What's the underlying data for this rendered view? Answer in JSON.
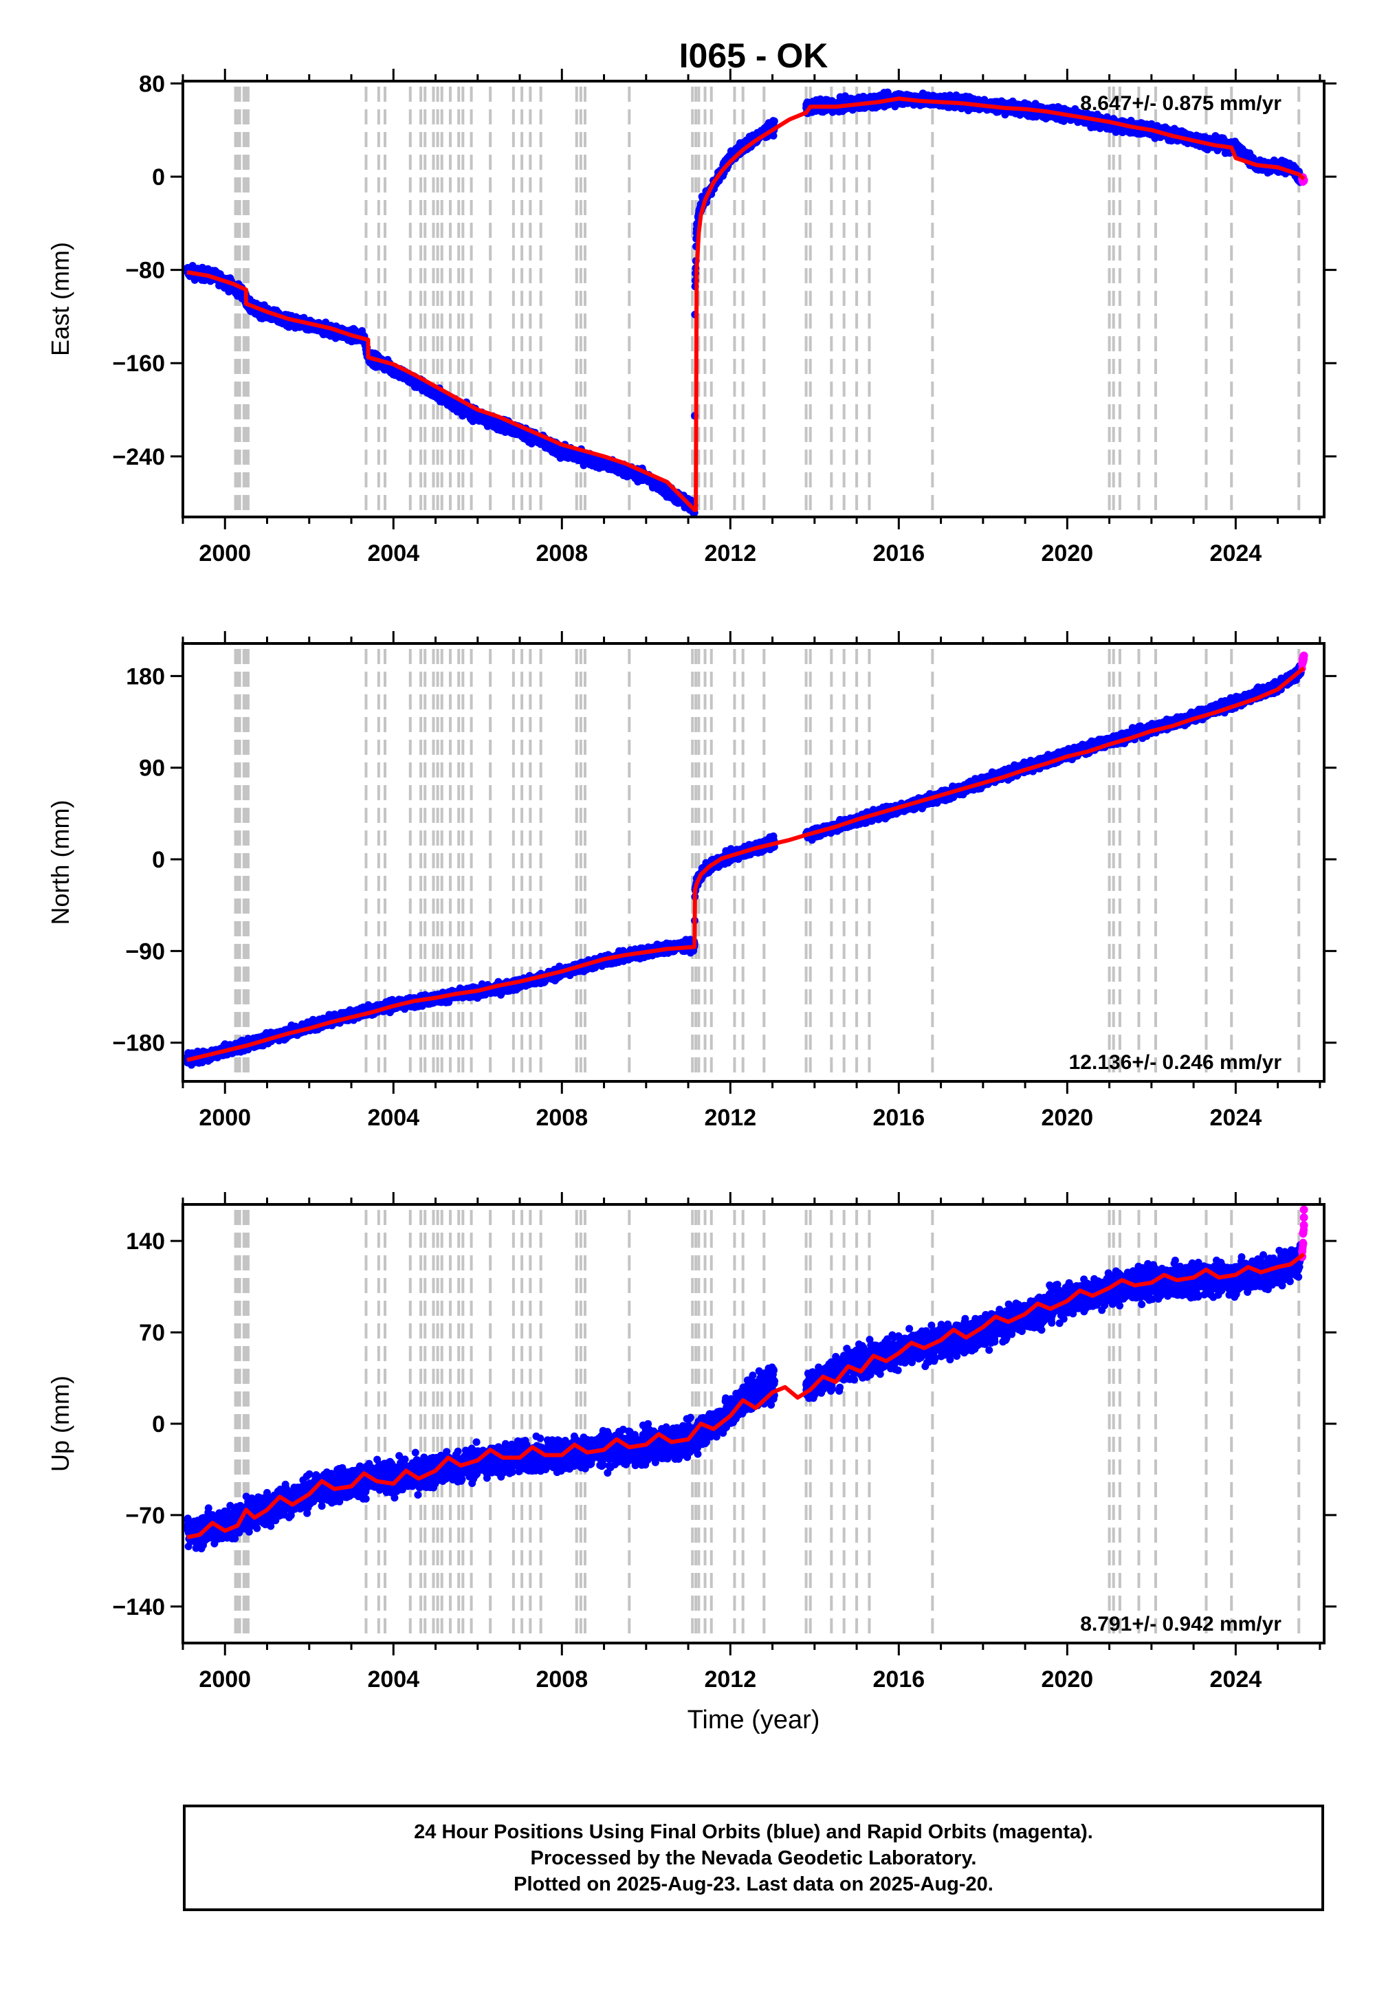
{
  "chart_data": {
    "type": "scatter",
    "title": "I065 - OK",
    "xlabel": "Time (year)",
    "xlim": [
      1999.0,
      2026.1
    ],
    "xticks": [
      2000,
      2004,
      2008,
      2012,
      2016,
      2020,
      2024
    ],
    "equipment_change_epochs": [
      2000.25,
      2000.3,
      2000.35,
      2000.45,
      2000.5,
      2000.55,
      2003.35,
      2003.65,
      2003.8,
      2004.4,
      2004.65,
      2004.75,
      2004.95,
      2005.05,
      2005.15,
      2005.35,
      2005.55,
      2005.65,
      2005.85,
      2006.3,
      2006.85,
      2007.05,
      2007.25,
      2007.5,
      2008.35,
      2008.45,
      2008.55,
      2009.6,
      2011.1,
      2011.18,
      2011.25,
      2011.4,
      2011.55,
      2012.1,
      2012.3,
      2012.8,
      2013.8,
      2013.9,
      2014.4,
      2014.7,
      2015.0,
      2015.3,
      2016.8,
      2021.0,
      2021.1,
      2021.25,
      2021.7,
      2022.1,
      2023.3,
      2023.9,
      2025.5
    ],
    "panels": [
      {
        "ylabel": "East (mm)",
        "ylim": [
          -292,
          82
        ],
        "yticks": [
          80,
          0,
          -80,
          -160,
          -240
        ],
        "rate_label": "8.647+/- 0.875 mm/yr",
        "rate_position": "top-right",
        "series": [
          {
            "name": "Final Orbits",
            "color": "#0000ff",
            "noise": 3.5,
            "x": [
              1999.1,
              1999.8,
              2000.4,
              2000.6,
              2001.5,
              2002.5,
              2003.3,
              2003.4,
              2004.0,
              2005.0,
              2006.0,
              2007.0,
              2008.0,
              2009.0,
              2010.0,
              2011.15,
              2011.16,
              2011.2,
              2011.3,
              2011.6,
              2012.0,
              2012.5,
              2013.0,
              2013.5,
              2013.8,
              2014.5,
              2015.0,
              2016.0,
              2017.0,
              2018.0,
              2019.0,
              2020.0,
              2021.0,
              2022.0,
              2023.0,
              2024.0,
              2024.5,
              2025.3,
              2025.55
            ],
            "y": [
              -81,
              -86,
              -99,
              -112,
              -124,
              -132,
              -138,
              -154,
              -165,
              -186,
              -206,
              -218,
              -236,
              -246,
              -258,
              -285,
              -100,
              -42,
              -25,
              -8,
              17,
              31,
              42,
              52,
              60,
              61,
              63,
              67,
              65,
              62,
              58,
              53,
              45,
              40,
              32,
              25,
              10,
              8,
              -2
            ]
          },
          {
            "name": "Rapid Orbits",
            "color": "#ff00ff",
            "noise": 2.0,
            "x": [
              2025.58,
              2025.62
            ],
            "y": [
              -2,
              -3
            ]
          }
        ],
        "fit": {
          "color": "#ff0000",
          "x": [
            1999.1,
            1999.6,
            2000.2,
            2000.5,
            2000.5,
            2001.0,
            2001.5,
            2002.0,
            2002.5,
            2003.0,
            2003.4,
            2003.4,
            2004.0,
            2004.5,
            2005.0,
            2005.5,
            2006.0,
            2006.5,
            2007.0,
            2007.5,
            2008.0,
            2008.5,
            2009.0,
            2009.5,
            2010.0,
            2010.5,
            2011.15,
            2011.18,
            2011.2,
            2011.25,
            2011.3,
            2011.4,
            2011.6,
            2011.8,
            2012.0,
            2012.3,
            2012.6,
            2013.0,
            2013.4,
            2013.8,
            2013.9,
            2014.5,
            2015.0,
            2015.5,
            2016.0,
            2016.5,
            2017.0,
            2017.5,
            2018.0,
            2018.5,
            2019.0,
            2019.5,
            2020.0,
            2020.5,
            2021.0,
            2021.5,
            2022.0,
            2022.5,
            2023.0,
            2023.5,
            2023.9,
            2024.0,
            2024.5,
            2025.0,
            2025.5,
            2025.62
          ],
          "y": [
            -82,
            -85,
            -92,
            -97,
            -109,
            -116,
            -122,
            -126,
            -130,
            -136,
            -140,
            -155,
            -161,
            -170,
            -180,
            -190,
            -200,
            -206,
            -214,
            -222,
            -230,
            -235,
            -240,
            -246,
            -254,
            -262,
            -286,
            -286,
            -80,
            -48,
            -33,
            -20,
            -5,
            5,
            13,
            23,
            31,
            40,
            49,
            55,
            60,
            60,
            62,
            64,
            67,
            65,
            64,
            63,
            61,
            59,
            58,
            56,
            53,
            50,
            47,
            43,
            40,
            35,
            31,
            27,
            25,
            16,
            10,
            8,
            2,
            -2
          ]
        }
      },
      {
        "ylabel": "North (mm)",
        "ylim": [
          -218,
          212
        ],
        "yticks": [
          180,
          90,
          0,
          -90,
          -180
        ],
        "rate_label": "12.136+/- 0.246 mm/yr",
        "rate_position": "bottom-right",
        "series": [
          {
            "name": "Final Orbits",
            "color": "#0000ff",
            "noise": 3.5,
            "x": [
              1999.1,
              1999.5,
              2000.5,
              2001.5,
              2002.5,
              2003.5,
              2004.5,
              2005.5,
              2006.5,
              2007.5,
              2008.5,
              2009.5,
              2010.5,
              2011.15,
              2011.16,
              2011.2,
              2011.4,
              2011.8,
              2012.5,
              2013.0,
              2013.5,
              2014.0,
              2015.0,
              2016.0,
              2017.0,
              2018.0,
              2019.0,
              2020.0,
              2021.0,
              2022.0,
              2023.0,
              2024.0,
              2025.0,
              2025.55
            ],
            "y": [
              -196,
              -194,
              -182,
              -170,
              -158,
              -147,
              -140,
              -133,
              -127,
              -117,
              -105,
              -95,
              -87,
              -84,
              -32,
              -22,
              -10,
              0,
              10,
              16,
              22,
              26,
              38,
              50,
              62,
              76,
              90,
              103,
              116,
              128,
              140,
              154,
              170,
              185
            ]
          },
          {
            "name": "Rapid Orbits",
            "color": "#ff00ff",
            "noise": 3.0,
            "x": [
              2025.58,
              2025.6,
              2025.62
            ],
            "y": [
              192,
              196,
              200
            ]
          }
        ],
        "fit": {
          "color": "#ff0000",
          "x": [
            1999.1,
            1999.5,
            2000.0,
            2000.5,
            2001.0,
            2001.5,
            2002.0,
            2002.5,
            2003.0,
            2003.5,
            2004.0,
            2004.5,
            2005.0,
            2005.5,
            2006.0,
            2006.5,
            2007.0,
            2007.5,
            2008.0,
            2008.5,
            2009.0,
            2009.5,
            2010.0,
            2010.5,
            2011.15,
            2011.16,
            2011.2,
            2011.3,
            2011.5,
            2011.8,
            2012.2,
            2012.6,
            2013.0,
            2013.4,
            2013.8,
            2014.5,
            2015.0,
            2015.5,
            2016.0,
            2016.5,
            2017.0,
            2017.5,
            2018.0,
            2018.5,
            2019.0,
            2019.5,
            2020.0,
            2020.5,
            2021.0,
            2021.5,
            2022.0,
            2022.5,
            2023.0,
            2023.5,
            2024.0,
            2024.5,
            2025.0,
            2025.62
          ],
          "y": [
            -197,
            -193,
            -188,
            -183,
            -177,
            -171,
            -166,
            -160,
            -155,
            -150,
            -144,
            -139,
            -136,
            -132,
            -129,
            -124,
            -120,
            -115,
            -110,
            -104,
            -98,
            -94,
            -91,
            -88,
            -86,
            -30,
            -24,
            -15,
            -7,
            1,
            6,
            11,
            15,
            19,
            24,
            32,
            39,
            45,
            51,
            57,
            63,
            69,
            75,
            81,
            88,
            94,
            101,
            106,
            113,
            119,
            126,
            131,
            138,
            144,
            151,
            158,
            167,
            188
          ]
        }
      },
      {
        "ylabel": "Up (mm)",
        "ylim": [
          -168,
          168
        ],
        "yticks": [
          140,
          70,
          0,
          -70,
          -140
        ],
        "rate_label": "8.791+/- 0.942 mm/yr",
        "rate_position": "bottom-right",
        "series": [
          {
            "name": "Final Orbits",
            "color": "#0000ff",
            "noise": 8.5,
            "x": [
              1999.1,
              1999.5,
              2000.0,
              2000.5,
              2001.0,
              2001.5,
              2002.5,
              2003.5,
              2004.0,
              2005.0,
              2006.0,
              2007.0,
              2008.0,
              2009.0,
              2010.0,
              2011.0,
              2011.5,
              2012.0,
              2012.4,
              2013.0,
              2013.5,
              2013.8,
              2014.5,
              2015.0,
              2016.0,
              2017.0,
              2018.0,
              2019.0,
              2020.0,
              2021.0,
              2022.0,
              2023.0,
              2024.0,
              2025.0,
              2025.55
            ],
            "y": [
              -85,
              -80,
              -78,
              -70,
              -65,
              -58,
              -48,
              -42,
              -42,
              -36,
              -30,
              -26,
              -24,
              -20,
              -18,
              -12,
              -2,
              8,
              22,
              30,
              25,
              28,
              40,
              48,
              55,
              62,
              70,
              83,
              95,
              103,
              108,
              110,
              112,
              118,
              125
            ]
          },
          {
            "name": "Rapid Orbits",
            "color": "#ff00ff",
            "noise": 2.0,
            "x": [
              2025.58,
              2025.58,
              2025.6,
              2025.6,
              2025.62,
              2025.62,
              2025.62
            ],
            "y": [
              128,
              132,
              138,
              146,
              152,
              158,
              164
            ]
          }
        ],
        "fit": {
          "color": "#ff0000",
          "x": [
            1999.1,
            1999.4,
            1999.7,
            2000.0,
            2000.3,
            2000.5,
            2000.7,
            2001.0,
            2001.3,
            2001.6,
            2002.0,
            2002.3,
            2002.6,
            2003.0,
            2003.3,
            2003.6,
            2004.0,
            2004.3,
            2004.6,
            2005.0,
            2005.3,
            2005.6,
            2006.0,
            2006.3,
            2006.6,
            2007.0,
            2007.3,
            2007.6,
            2008.0,
            2008.3,
            2008.6,
            2009.0,
            2009.3,
            2009.6,
            2010.0,
            2010.3,
            2010.6,
            2011.0,
            2011.3,
            2011.6,
            2012.0,
            2012.3,
            2012.6,
            2013.0,
            2013.3,
            2013.6,
            2013.9,
            2014.2,
            2014.5,
            2014.8,
            2015.1,
            2015.4,
            2015.7,
            2016.0,
            2016.3,
            2016.6,
            2017.0,
            2017.3,
            2017.6,
            2018.0,
            2018.3,
            2018.6,
            2019.0,
            2019.3,
            2019.6,
            2020.0,
            2020.3,
            2020.6,
            2021.0,
            2021.3,
            2021.6,
            2022.0,
            2022.3,
            2022.6,
            2023.0,
            2023.3,
            2023.6,
            2024.0,
            2024.3,
            2024.6,
            2025.0,
            2025.3,
            2025.62
          ],
          "y": [
            -87,
            -85,
            -76,
            -82,
            -78,
            -66,
            -72,
            -66,
            -56,
            -62,
            -54,
            -44,
            -50,
            -48,
            -38,
            -44,
            -46,
            -36,
            -42,
            -36,
            -26,
            -32,
            -28,
            -20,
            -26,
            -26,
            -18,
            -24,
            -24,
            -16,
            -22,
            -20,
            -12,
            -18,
            -16,
            -8,
            -14,
            -12,
            0,
            -4,
            6,
            18,
            12,
            24,
            28,
            20,
            26,
            36,
            32,
            44,
            40,
            52,
            48,
            54,
            62,
            58,
            64,
            72,
            66,
            74,
            82,
            78,
            84,
            92,
            88,
            94,
            102,
            98,
            104,
            110,
            106,
            108,
            114,
            110,
            112,
            118,
            112,
            114,
            120,
            116,
            120,
            122,
            130
          ]
        }
      }
    ]
  },
  "footer": {
    "line1": "24 Hour Positions Using Final Orbits (blue) and Rapid Orbits (magenta).",
    "line2": "Processed by the Nevada Geodetic Laboratory.",
    "line3": "Plotted on 2025-Aug-23. Last data on 2025-Aug-20."
  }
}
